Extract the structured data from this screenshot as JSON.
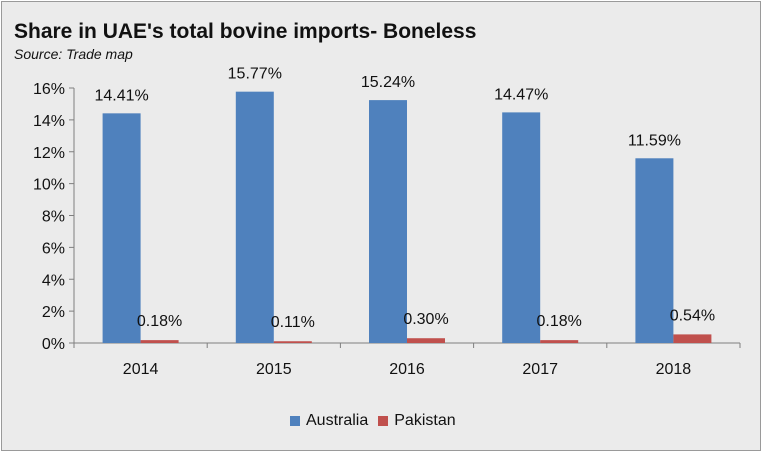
{
  "title": "Share in UAE's total bovine imports- Boneless",
  "subtitle": "Source: Trade map",
  "colors": {
    "Australia": "#4f81bd",
    "Pakistan": "#c0504d",
    "background": "#ebebeb"
  },
  "chart_data": {
    "type": "bar",
    "title": "Share in UAE's total bovine imports- Boneless",
    "subtitle": "Source: Trade map",
    "categories": [
      "2014",
      "2015",
      "2016",
      "2017",
      "2018"
    ],
    "series": [
      {
        "name": "Australia",
        "values": [
          14.41,
          15.77,
          15.24,
          14.47,
          11.59
        ],
        "labels": [
          "14.41%",
          "15.77%",
          "15.24%",
          "14.47%",
          "11.59%"
        ]
      },
      {
        "name": "Pakistan",
        "values": [
          0.18,
          0.11,
          0.3,
          0.18,
          0.54
        ],
        "labels": [
          "0.18%",
          "0.11%",
          "0.30%",
          "0.18%",
          "0.54%"
        ]
      }
    ],
    "ylim": [
      0,
      16
    ],
    "yticks": [
      "0%",
      "2%",
      "4%",
      "6%",
      "8%",
      "10%",
      "12%",
      "14%",
      "16%"
    ],
    "grid": false,
    "legend": "bottom"
  }
}
